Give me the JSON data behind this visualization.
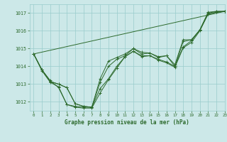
{
  "title": "Graphe pression niveau de la mer (hPa)",
  "bg_color": "#cce8e8",
  "grid_color": "#99cccc",
  "line_color": "#2d6a2d",
  "xlim": [
    -0.5,
    23
  ],
  "ylim": [
    1011.5,
    1017.5
  ],
  "yticks": [
    1012,
    1013,
    1014,
    1015,
    1016,
    1017
  ],
  "xticks": [
    0,
    1,
    2,
    3,
    4,
    5,
    6,
    7,
    8,
    9,
    10,
    11,
    12,
    13,
    14,
    15,
    16,
    17,
    18,
    19,
    20,
    21,
    22,
    23
  ],
  "series": [
    [
      1014.7,
      1013.8,
      1013.2,
      1012.8,
      1011.85,
      1011.75,
      1011.7,
      1011.7,
      1012.75,
      1013.3,
      1014.0,
      1014.55,
      1014.85,
      1014.6,
      1014.6,
      1014.4,
      1014.25,
      1014.0,
      1015.1,
      1015.45,
      1016.05,
      1016.95,
      1017.05,
      1017.1
    ],
    [
      1014.7,
      1013.8,
      1013.15,
      1013.0,
      1012.8,
      1011.9,
      1011.75,
      1011.7,
      1013.3,
      1014.3,
      1014.5,
      1014.7,
      1015.0,
      1014.7,
      1014.75,
      1014.55,
      1014.6,
      1014.1,
      1015.5,
      1015.5,
      1016.05,
      1017.05,
      1017.1,
      1017.1
    ],
    [
      1014.7,
      1013.8,
      1013.15,
      1013.0,
      1012.8,
      1011.9,
      1011.75,
      1011.7,
      1013.1,
      1014.0,
      1014.4,
      1014.6,
      1015.0,
      1014.8,
      1014.75,
      1014.5,
      1014.6,
      1014.0,
      1015.4,
      1015.5,
      1016.05,
      1017.0,
      1017.1,
      1017.1
    ],
    [
      1014.7,
      1013.75,
      1013.1,
      1012.85,
      1011.85,
      1011.7,
      1011.65,
      1011.65,
      1012.5,
      1013.25,
      1013.9,
      1014.55,
      1014.85,
      1014.55,
      1014.6,
      1014.35,
      1014.2,
      1013.95,
      1015.05,
      1015.35,
      1016.0,
      1016.95,
      1017.05,
      1017.1
    ]
  ],
  "series_straight": [
    [
      1014.7,
      1017.1
    ],
    [
      0,
      23
    ]
  ]
}
